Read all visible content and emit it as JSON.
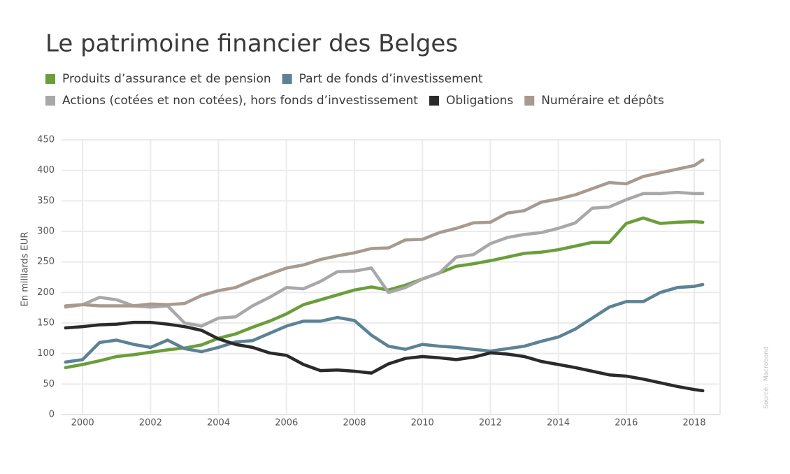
{
  "chart_data": {
    "type": "line",
    "title": "Le patrimoine financier des Belges",
    "y_label": "En milliards EUR",
    "source": "Source : Macrobond",
    "x": [
      1999.5,
      2000,
      2000.5,
      2001,
      2001.5,
      2002,
      2002.5,
      2003,
      2003.5,
      2004,
      2004.5,
      2005,
      2005.5,
      2006,
      2006.5,
      2007,
      2007.5,
      2008,
      2008.5,
      2009,
      2009.5,
      2010,
      2010.5,
      2011,
      2011.5,
      2012,
      2012.5,
      2013,
      2013.5,
      2014,
      2014.5,
      2015,
      2015.5,
      2016,
      2016.5,
      2017,
      2017.5,
      2018,
      2018.25
    ],
    "xlim": [
      1999.38,
      2018.76
    ],
    "xticks": [
      2000,
      2002,
      2004,
      2006,
      2008,
      2010,
      2012,
      2014,
      2016,
      2018
    ],
    "ylim": [
      0,
      450
    ],
    "yticks": [
      0,
      50,
      100,
      150,
      200,
      250,
      300,
      350,
      400,
      450
    ],
    "grid": true,
    "series": [
      {
        "name": "Produits d’assurance et de pension",
        "color": "#6a9e3a",
        "values": [
          77,
          82,
          88,
          95,
          98,
          102,
          106,
          109,
          114,
          125,
          132,
          143,
          153,
          165,
          180,
          188,
          196,
          204,
          209,
          204,
          212,
          222,
          232,
          243,
          247,
          252,
          258,
          264,
          266,
          270,
          276,
          282,
          282,
          313,
          322,
          313,
          315,
          316,
          315
        ]
      },
      {
        "name": "Part de fonds d’investissement",
        "color": "#5c8296",
        "values": [
          86,
          90,
          118,
          122,
          115,
          110,
          122,
          108,
          103,
          110,
          119,
          121,
          133,
          145,
          153,
          153,
          159,
          154,
          130,
          112,
          107,
          115,
          112,
          110,
          107,
          104,
          108,
          112,
          120,
          127,
          140,
          158,
          176,
          185,
          185,
          200,
          208,
          210,
          213
        ]
      },
      {
        "name": "Actions (cotées et non cotées), hors fonds d’investissement",
        "color": "#a8a8a8",
        "values": [
          176,
          180,
          192,
          188,
          178,
          176,
          178,
          150,
          145,
          158,
          160,
          178,
          192,
          208,
          206,
          218,
          234,
          235,
          240,
          200,
          208,
          222,
          232,
          258,
          262,
          280,
          290,
          295,
          298,
          305,
          314,
          338,
          340,
          352,
          362,
          362,
          364,
          362,
          362
        ]
      },
      {
        "name": "Obligations",
        "color": "#2b2a28",
        "values": [
          142,
          144,
          147,
          148,
          151,
          151,
          148,
          144,
          138,
          124,
          115,
          110,
          101,
          97,
          82,
          72,
          73,
          71,
          68,
          83,
          92,
          95,
          93,
          90,
          94,
          101,
          99,
          95,
          87,
          82,
          77,
          71,
          65,
          63,
          58,
          52,
          46,
          41,
          39
        ]
      },
      {
        "name": "Numéraire et dépôts",
        "color": "#a89a8e",
        "values": [
          178,
          180,
          178,
          178,
          178,
          181,
          180,
          182,
          195,
          203,
          208,
          220,
          230,
          240,
          245,
          254,
          260,
          265,
          272,
          273,
          286,
          287,
          298,
          305,
          314,
          315,
          330,
          334,
          348,
          353,
          360,
          370,
          380,
          378,
          390,
          396,
          402,
          408,
          417
        ]
      }
    ]
  }
}
